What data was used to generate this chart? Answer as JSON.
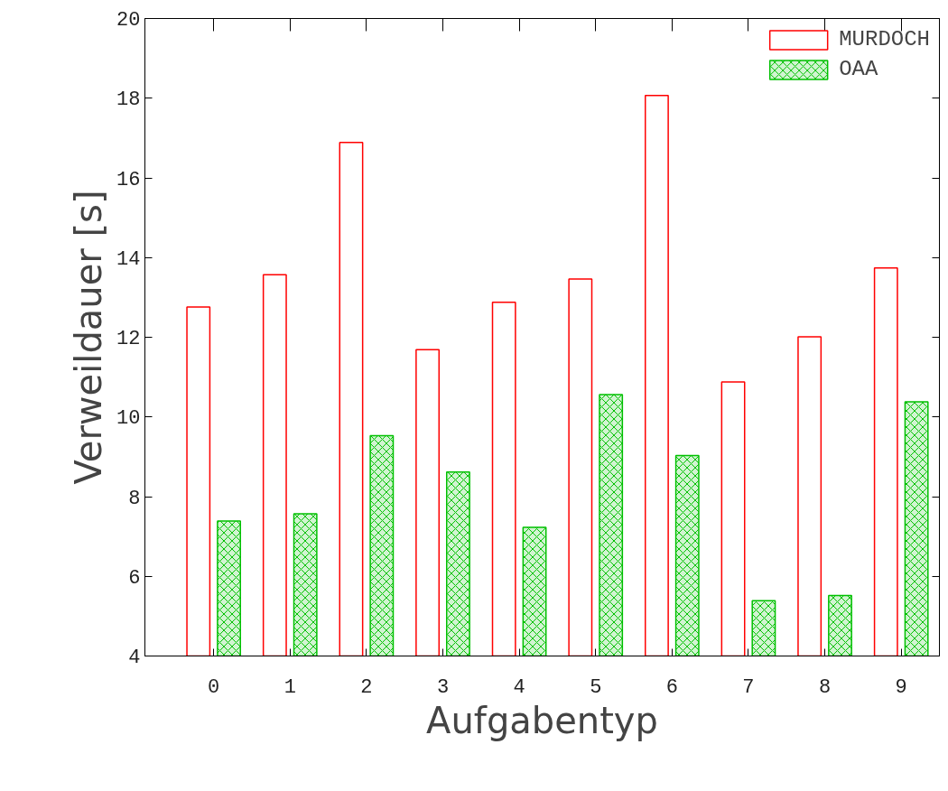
{
  "chart_data": {
    "type": "bar",
    "xlabel": "Aufgabentyp",
    "ylabel": "Verweildauer [s]",
    "categories": [
      "0",
      "1",
      "2",
      "3",
      "4",
      "5",
      "6",
      "7",
      "8",
      "9"
    ],
    "series": [
      {
        "name": "MURDOCH",
        "color": "#ff0000",
        "values": [
          12.76,
          13.57,
          16.89,
          11.69,
          12.88,
          13.46,
          18.07,
          10.88,
          12.01,
          13.74
        ]
      },
      {
        "name": "OAA",
        "color": "#00c000",
        "values": [
          7.39,
          7.57,
          9.53,
          8.62,
          7.23,
          10.56,
          9.03,
          5.39,
          5.52,
          10.38
        ]
      }
    ],
    "ylim": [
      4,
      20
    ],
    "yticks": [
      4,
      6,
      8,
      10,
      12,
      14,
      16,
      18,
      20
    ],
    "grid": false,
    "legend": "top right"
  }
}
